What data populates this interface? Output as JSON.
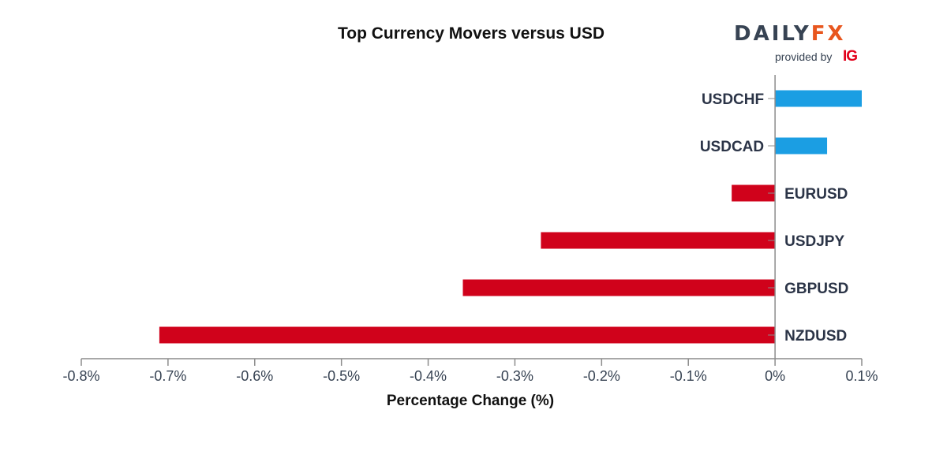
{
  "logo": {
    "brand_part1": "DAILY",
    "brand_part2": "FX",
    "provided_by": "provided by",
    "ig": "IG"
  },
  "chart_data": {
    "type": "bar",
    "orientation": "horizontal",
    "title": "Top Currency Movers versus USD",
    "xlabel": "Percentage Change (%)",
    "ylabel": "",
    "categories": [
      "USDCHF",
      "USDCAD",
      "EURUSD",
      "USDJPY",
      "GBPUSD",
      "NZDUSD"
    ],
    "values": [
      0.1,
      0.06,
      -0.05,
      -0.27,
      -0.36,
      -0.71
    ],
    "xlim": [
      -0.8,
      0.1
    ],
    "xticks": [
      -0.8,
      -0.7,
      -0.6,
      -0.5,
      -0.4,
      -0.3,
      -0.2,
      -0.1,
      0,
      0.1
    ],
    "xtick_labels": [
      "-0.8%",
      "-0.7%",
      "-0.6%",
      "-0.5%",
      "-0.4%",
      "-0.3%",
      "-0.2%",
      "-0.1%",
      "0%",
      "0.1%"
    ],
    "colors": {
      "positive": "#1b9ee3",
      "negative": "#d0021b",
      "axis": "#8c8c8c"
    },
    "grid": false,
    "legend": "none"
  }
}
